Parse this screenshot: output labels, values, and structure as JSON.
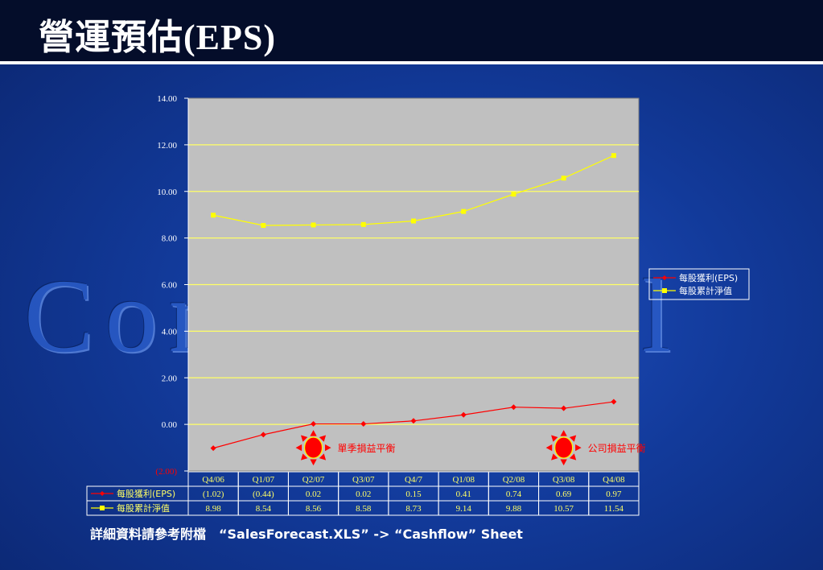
{
  "slide": {
    "title_cjk": "營運預估",
    "title_latin": "(EPS)",
    "watermark": "Confidential",
    "footer": "詳細資料請參考附檔　“SalesForecast.XLS” -> “Cashflow” Sheet"
  },
  "colors": {
    "plot_background": "#c0c0c0",
    "gridline": "#ffff66",
    "eps": "#ff0000",
    "nav": "#ffff00",
    "table_text": "#ffff66",
    "label_text": "#ff0000"
  },
  "chart_data": {
    "type": "line",
    "categories": [
      "Q4/06",
      "Q1/07",
      "Q2/07",
      "Q3/07",
      "Q4/7",
      "Q1/08",
      "Q2/08",
      "Q3/08",
      "Q4/08"
    ],
    "series": [
      {
        "name": "每股獲利(EPS)",
        "values": [
          -1.02,
          -0.44,
          0.02,
          0.02,
          0.15,
          0.41,
          0.74,
          0.69,
          0.97
        ],
        "labels": [
          "(1.02)",
          "(0.44)",
          "0.02",
          "0.02",
          "0.15",
          "0.41",
          "0.74",
          "0.69",
          "0.97"
        ]
      },
      {
        "name": "每股累計淨值",
        "values": [
          8.98,
          8.54,
          8.56,
          8.58,
          8.73,
          9.14,
          9.88,
          10.57,
          11.54
        ],
        "labels": [
          "8.98",
          "8.54",
          "8.56",
          "8.58",
          "8.73",
          "9.14",
          "9.88",
          "10.57",
          "11.54"
        ]
      }
    ],
    "ylim": [
      -2,
      14
    ],
    "yticks": [
      -2,
      0,
      2,
      4,
      6,
      8,
      10,
      12,
      14
    ],
    "ytick_labels": [
      "(2.00)",
      "0.00",
      "2.00",
      "4.00",
      "6.00",
      "8.00",
      "10.00",
      "12.00",
      "14.00"
    ],
    "grid": true,
    "legend": "right",
    "annotations": [
      {
        "text": "單季損益平衡",
        "category": "Q2/07"
      },
      {
        "text": "公司損益平衡",
        "category": "Q3/08"
      }
    ]
  }
}
